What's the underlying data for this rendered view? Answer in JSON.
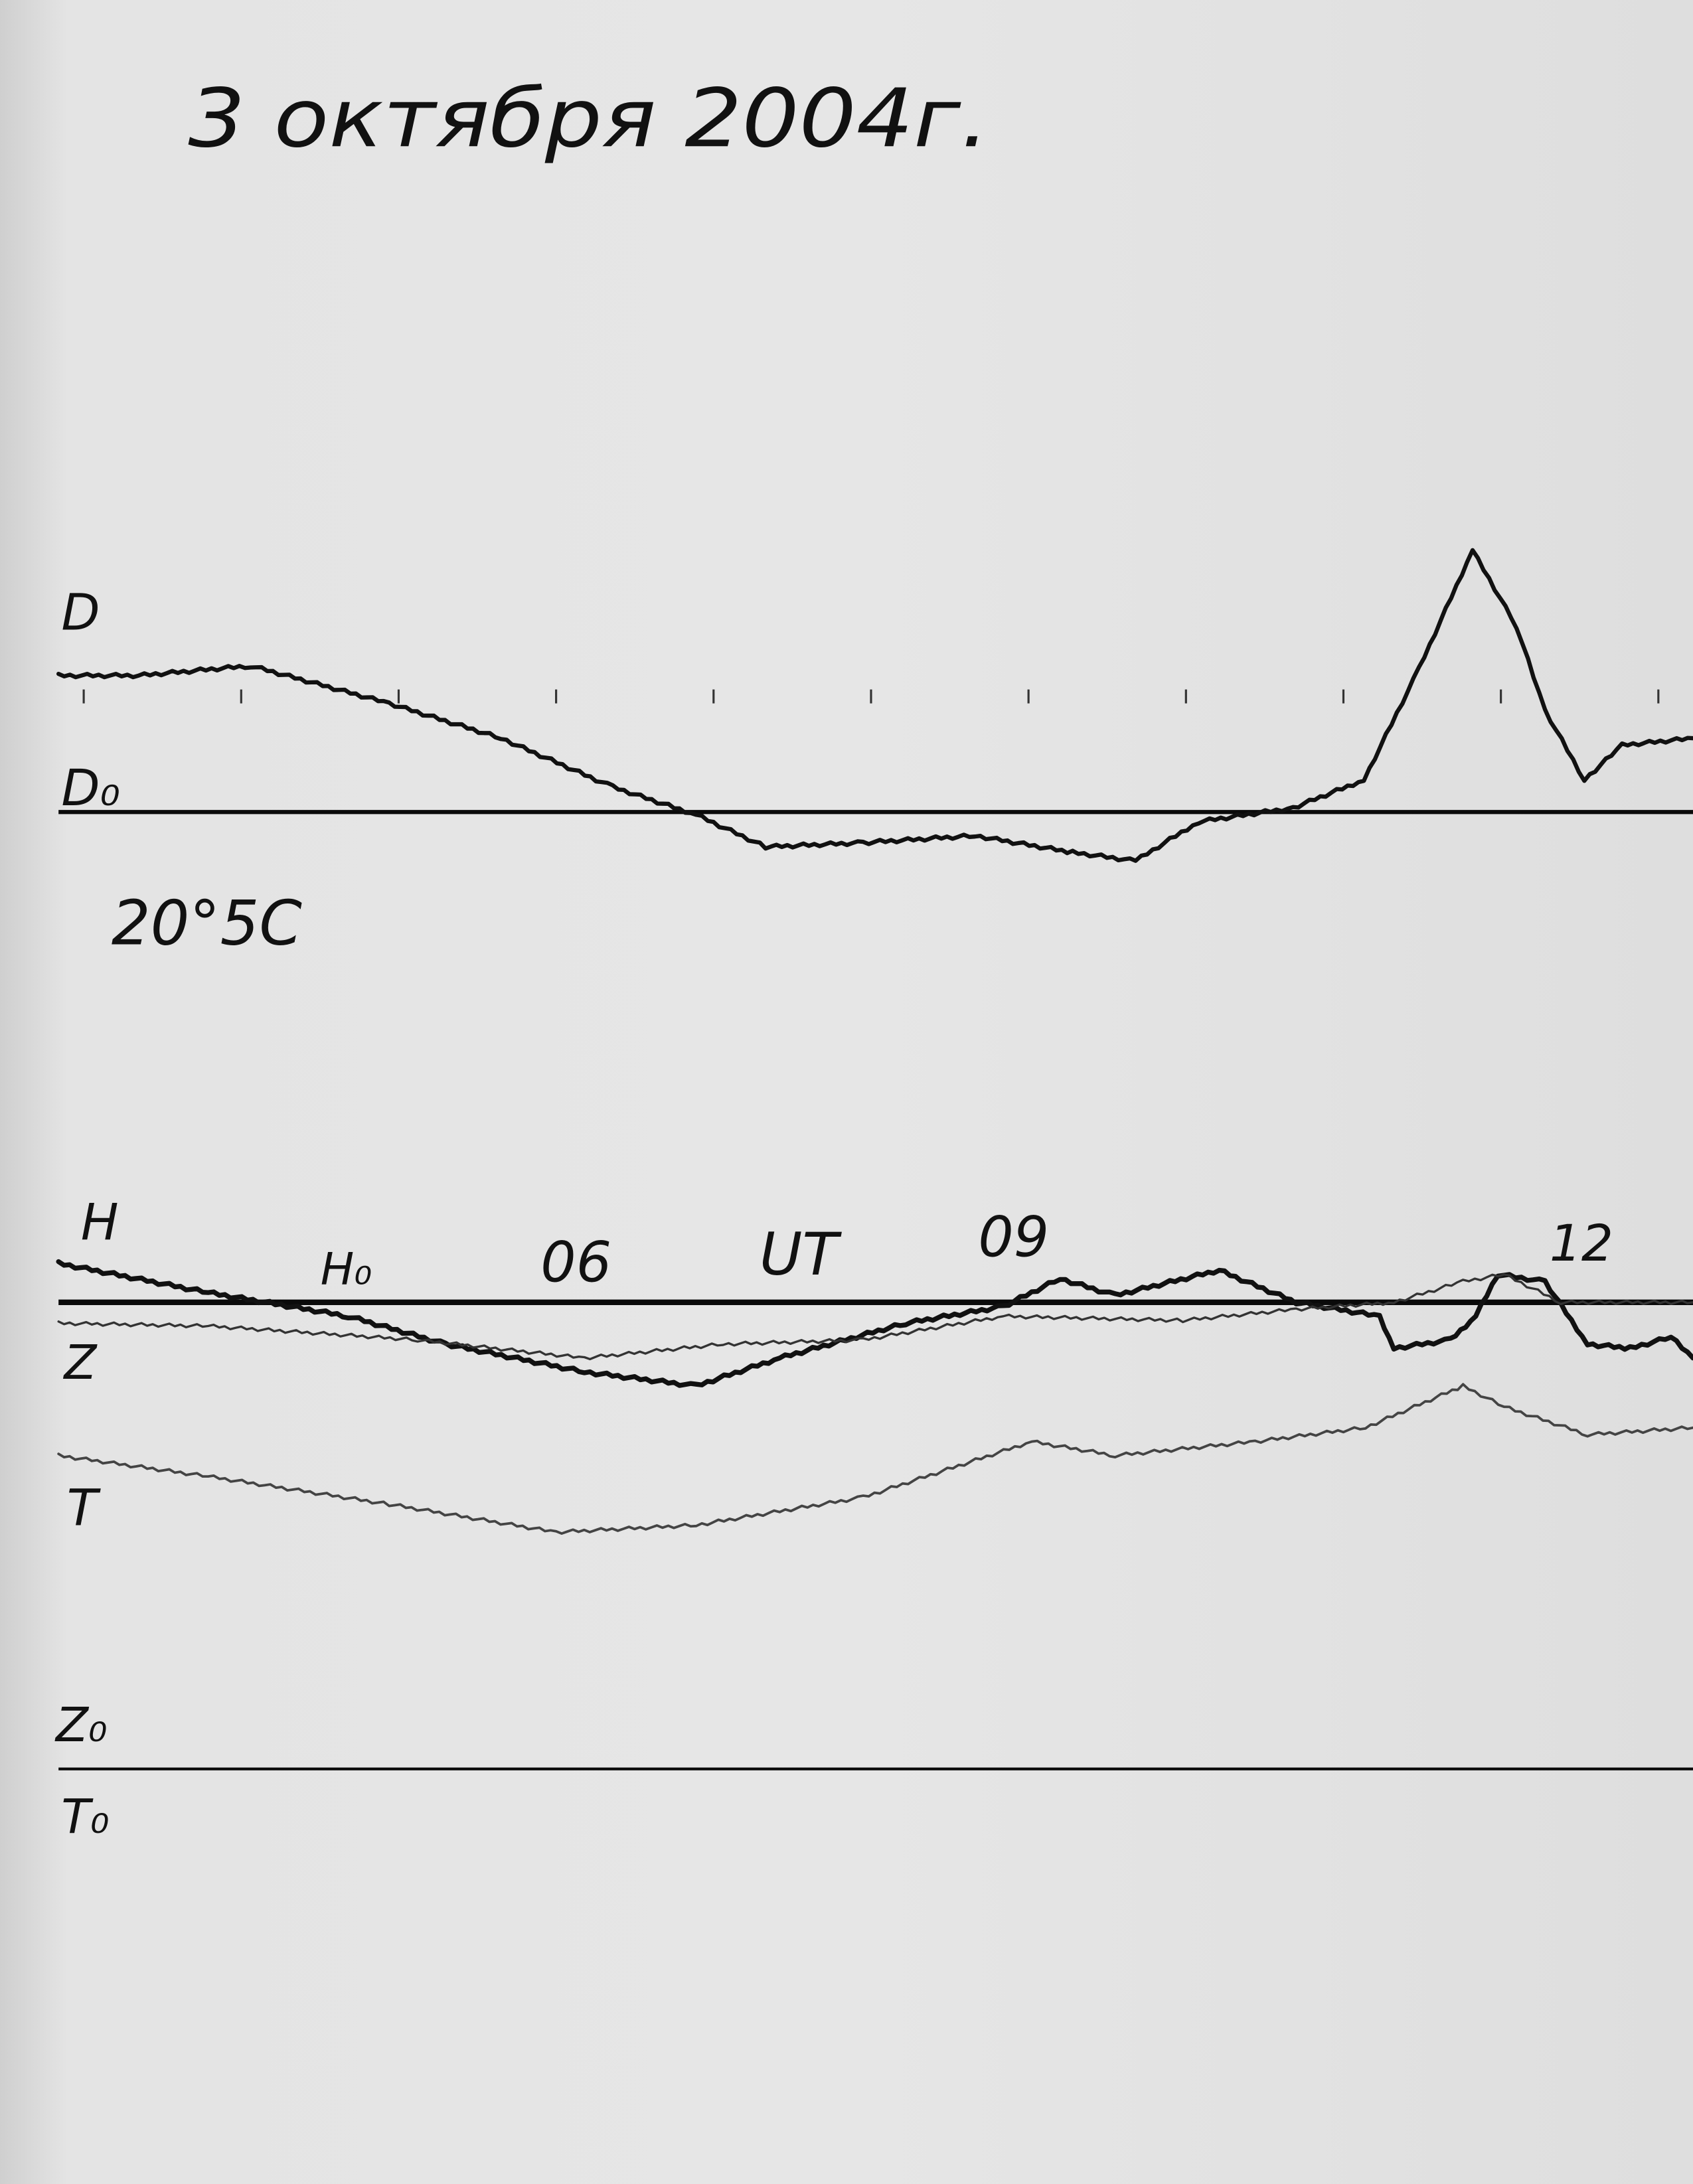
{
  "chart_data": {
    "type": "line",
    "title": "3 октября 2004г.",
    "temperature_note": "20°5C",
    "x_axis": {
      "label": "UT",
      "unit": "hours",
      "tick_labels": [
        "06",
        "09",
        "12"
      ],
      "range": [
        2.86,
        13.24
      ],
      "hourly_tick_marks": true
    },
    "y_axis": {
      "unit": "relative deflection from baseline (arbitrary)"
    },
    "grid": false,
    "baselines": [
      {
        "name": "D₀",
        "label": "D0"
      },
      {
        "name": "H₀",
        "label": "H0"
      },
      {
        "name": "Z₀",
        "label": "Z0"
      },
      {
        "name": "T₀",
        "label": "T0"
      }
    ],
    "series": [
      {
        "name": "D",
        "baseline": "D0",
        "color": "#111111",
        "points": [
          [
            2.86,
            9.8
          ],
          [
            3.37,
            9.8
          ],
          [
            4.08,
            10.5
          ],
          [
            4.96,
            7.8
          ],
          [
            5.67,
            5.3
          ],
          [
            6.38,
            1.8
          ],
          [
            6.91,
            -0.2
          ],
          [
            7.35,
            -2.5
          ],
          [
            7.97,
            -2.2
          ],
          [
            8.68,
            -1.7
          ],
          [
            9.3,
            -2.9
          ],
          [
            9.7,
            -3.5
          ],
          [
            10.1,
            -0.7
          ],
          [
            10.7,
            0.3
          ],
          [
            11.15,
            2.3
          ],
          [
            11.5,
            10.3
          ],
          [
            11.84,
            18.8
          ],
          [
            12.12,
            13.3
          ],
          [
            12.3,
            7.3
          ],
          [
            12.55,
            2.3
          ],
          [
            12.79,
            4.8
          ],
          [
            13.24,
            5.3
          ]
        ]
      },
      {
        "name": "H",
        "baseline": "H0",
        "color": "#111111",
        "points": [
          [
            2.86,
            2.8
          ],
          [
            3.81,
            0.7
          ],
          [
            4.7,
            -1.0
          ],
          [
            5.32,
            -3.0
          ],
          [
            6.2,
            -5.0
          ],
          [
            6.91,
            -6.0
          ],
          [
            7.44,
            -4.0
          ],
          [
            8.24,
            -1.5
          ],
          [
            8.86,
            -0.3
          ],
          [
            9.22,
            1.7
          ],
          [
            9.57,
            0.5
          ],
          [
            10.23,
            2.3
          ],
          [
            10.72,
            0
          ],
          [
            11.25,
            -1.0
          ],
          [
            11.34,
            -3.3
          ],
          [
            11.7,
            -2.7
          ],
          [
            11.86,
            -1.0
          ],
          [
            12.0,
            2.0
          ],
          [
            12.3,
            1.5
          ],
          [
            12.57,
            -3.0
          ],
          [
            12.84,
            -3.3
          ],
          [
            13.1,
            -2.5
          ],
          [
            13.24,
            -4.0
          ]
        ]
      },
      {
        "name": "Z",
        "baseline": "Z0",
        "color": "#333333",
        "points": [
          [
            2.86,
            32
          ],
          [
            3.81,
            31.8
          ],
          [
            5.14,
            30.8
          ],
          [
            6.2,
            29.5
          ],
          [
            7.08,
            30.5
          ],
          [
            7.97,
            30.8
          ],
          [
            8.86,
            32.5
          ],
          [
            10.0,
            32.2
          ],
          [
            10.72,
            33
          ],
          [
            11.34,
            33.5
          ],
          [
            11.78,
            35
          ],
          [
            12.04,
            35.5
          ],
          [
            12.4,
            33.5
          ],
          [
            13.24,
            33.5
          ]
        ]
      },
      {
        "name": "T",
        "baseline": "T0",
        "color": "#444444",
        "points": [
          [
            2.86,
            22.5
          ],
          [
            3.81,
            21
          ],
          [
            4.96,
            19
          ],
          [
            6.02,
            17
          ],
          [
            6.91,
            17.5
          ],
          [
            7.97,
            19.5
          ],
          [
            9.04,
            23.5
          ],
          [
            9.57,
            22.5
          ],
          [
            10.46,
            23.5
          ],
          [
            11.16,
            24.5
          ],
          [
            11.78,
            27.5
          ],
          [
            12.04,
            26
          ],
          [
            12.57,
            24
          ],
          [
            13.24,
            24.5
          ]
        ]
      }
    ]
  }
}
